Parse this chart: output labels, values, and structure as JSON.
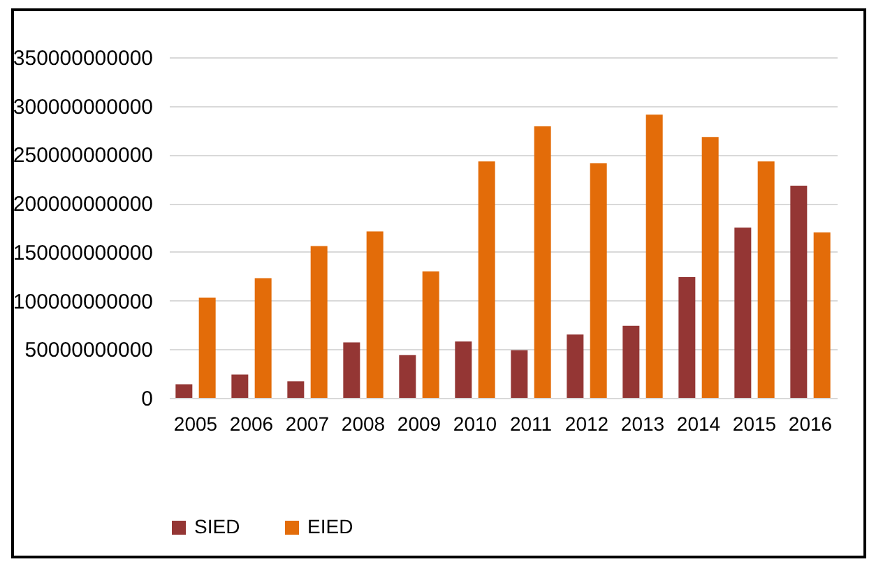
{
  "chart_data": {
    "type": "bar",
    "categories": [
      "2005",
      "2006",
      "2007",
      "2008",
      "2009",
      "2010",
      "2011",
      "2012",
      "2013",
      "2014",
      "2015",
      "2016"
    ],
    "series": [
      {
        "name": "SIED",
        "color": "#943634",
        "values": [
          14000000000,
          24000000000,
          17000000000,
          57000000000,
          44000000000,
          58000000000,
          49000000000,
          65000000000,
          74000000000,
          124000000000,
          175000000000,
          218000000000
        ]
      },
      {
        "name": "EIED",
        "color": "#e36c09",
        "values": [
          103000000000,
          123000000000,
          156000000000,
          171000000000,
          130000000000,
          243000000000,
          279000000000,
          241000000000,
          291000000000,
          268000000000,
          243000000000,
          170000000000
        ]
      }
    ],
    "ylim": [
      0,
      350000000000
    ],
    "yticks": [
      0,
      50000000000,
      100000000000,
      150000000000,
      200000000000,
      250000000000,
      300000000000,
      350000000000
    ],
    "grid": "y",
    "legend": "bottom"
  }
}
